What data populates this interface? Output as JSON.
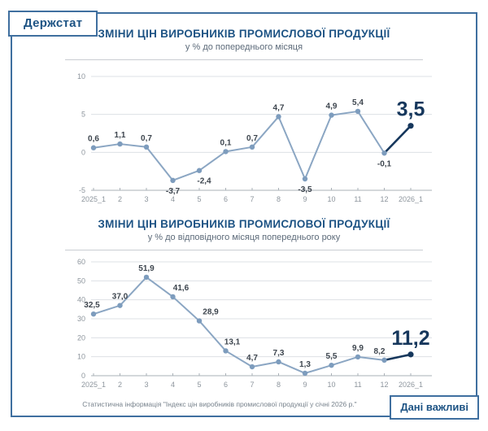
{
  "logo": "Держстат",
  "badge": "Дані важливі",
  "footnote": "Статистична інформація \"Індекс цін виробників промислової продукції у січні 2026 р.\"",
  "colors": {
    "frame": "#3f6f9f",
    "title": "#1d5384",
    "accent": "#16375c",
    "subtitle": "#5d6b7a",
    "divider": "#c9cdd2",
    "grid": "#dde0e4",
    "axis": "#a9b0b7",
    "tick": "#8d959d",
    "label": "#3d454e",
    "line": "#8ba6c3",
    "marker": "#7d9cbd",
    "footnote": "#77828c"
  },
  "chart_data": [
    {
      "type": "line",
      "title": "ЗМІНИ ЦІН ВИРОБНИКІВ ПРОМИСЛОВОЇ ПРОДУКЦІЇ",
      "subtitle": "у % до попереднього місяця",
      "categories": [
        "2025_1",
        "2",
        "3",
        "4",
        "5",
        "6",
        "7",
        "8",
        "9",
        "10",
        "11",
        "12",
        "2026_1"
      ],
      "values": [
        0.6,
        1.1,
        0.7,
        -3.7,
        -2.4,
        0.1,
        0.7,
        4.7,
        -3.5,
        4.9,
        5.4,
        -0.1,
        3.5
      ],
      "labels": [
        "0,6",
        "1,1",
        "0,7",
        "-3,7",
        "-2,4",
        "0,1",
        "0,7",
        "4,7",
        "-3,5",
        "4,9",
        "5,4",
        "-0,1",
        "3,5"
      ],
      "xlabel": "",
      "ylabel": "",
      "ylim": [
        -5,
        10
      ],
      "yticks": [
        10,
        5,
        0,
        -5
      ],
      "grid": true,
      "highlight_last": true,
      "label_dx": [
        0,
        0,
        0,
        0,
        6,
        0,
        0,
        0,
        0,
        0,
        0,
        0,
        0
      ]
    },
    {
      "type": "line",
      "title": "ЗМІНИ ЦІН ВИРОБНИКІВ ПРОМИСЛОВОЇ ПРОДУКЦІЇ",
      "subtitle": "у % до відповідного місяця попереднього року",
      "categories": [
        "2025_1",
        "2",
        "3",
        "4",
        "5",
        "6",
        "7",
        "8",
        "9",
        "10",
        "11",
        "12",
        "2026_1"
      ],
      "values": [
        32.5,
        37.0,
        51.9,
        41.6,
        28.9,
        13.1,
        4.7,
        7.3,
        1.3,
        5.5,
        9.9,
        8.2,
        11.2
      ],
      "labels": [
        "32,5",
        "37,0",
        "51,9",
        "41,6",
        "28,9",
        "13,1",
        "4,7",
        "7,3",
        "1,3",
        "5,5",
        "9,9",
        "8,2",
        "11,2"
      ],
      "xlabel": "",
      "ylabel": "",
      "ylim": [
        0,
        60
      ],
      "yticks": [
        60,
        50,
        40,
        30,
        20,
        10,
        0
      ],
      "grid": true,
      "highlight_last": true,
      "label_dx": [
        -2,
        0,
        0,
        10,
        14,
        8,
        0,
        0,
        0,
        0,
        0,
        -6,
        0
      ]
    }
  ]
}
